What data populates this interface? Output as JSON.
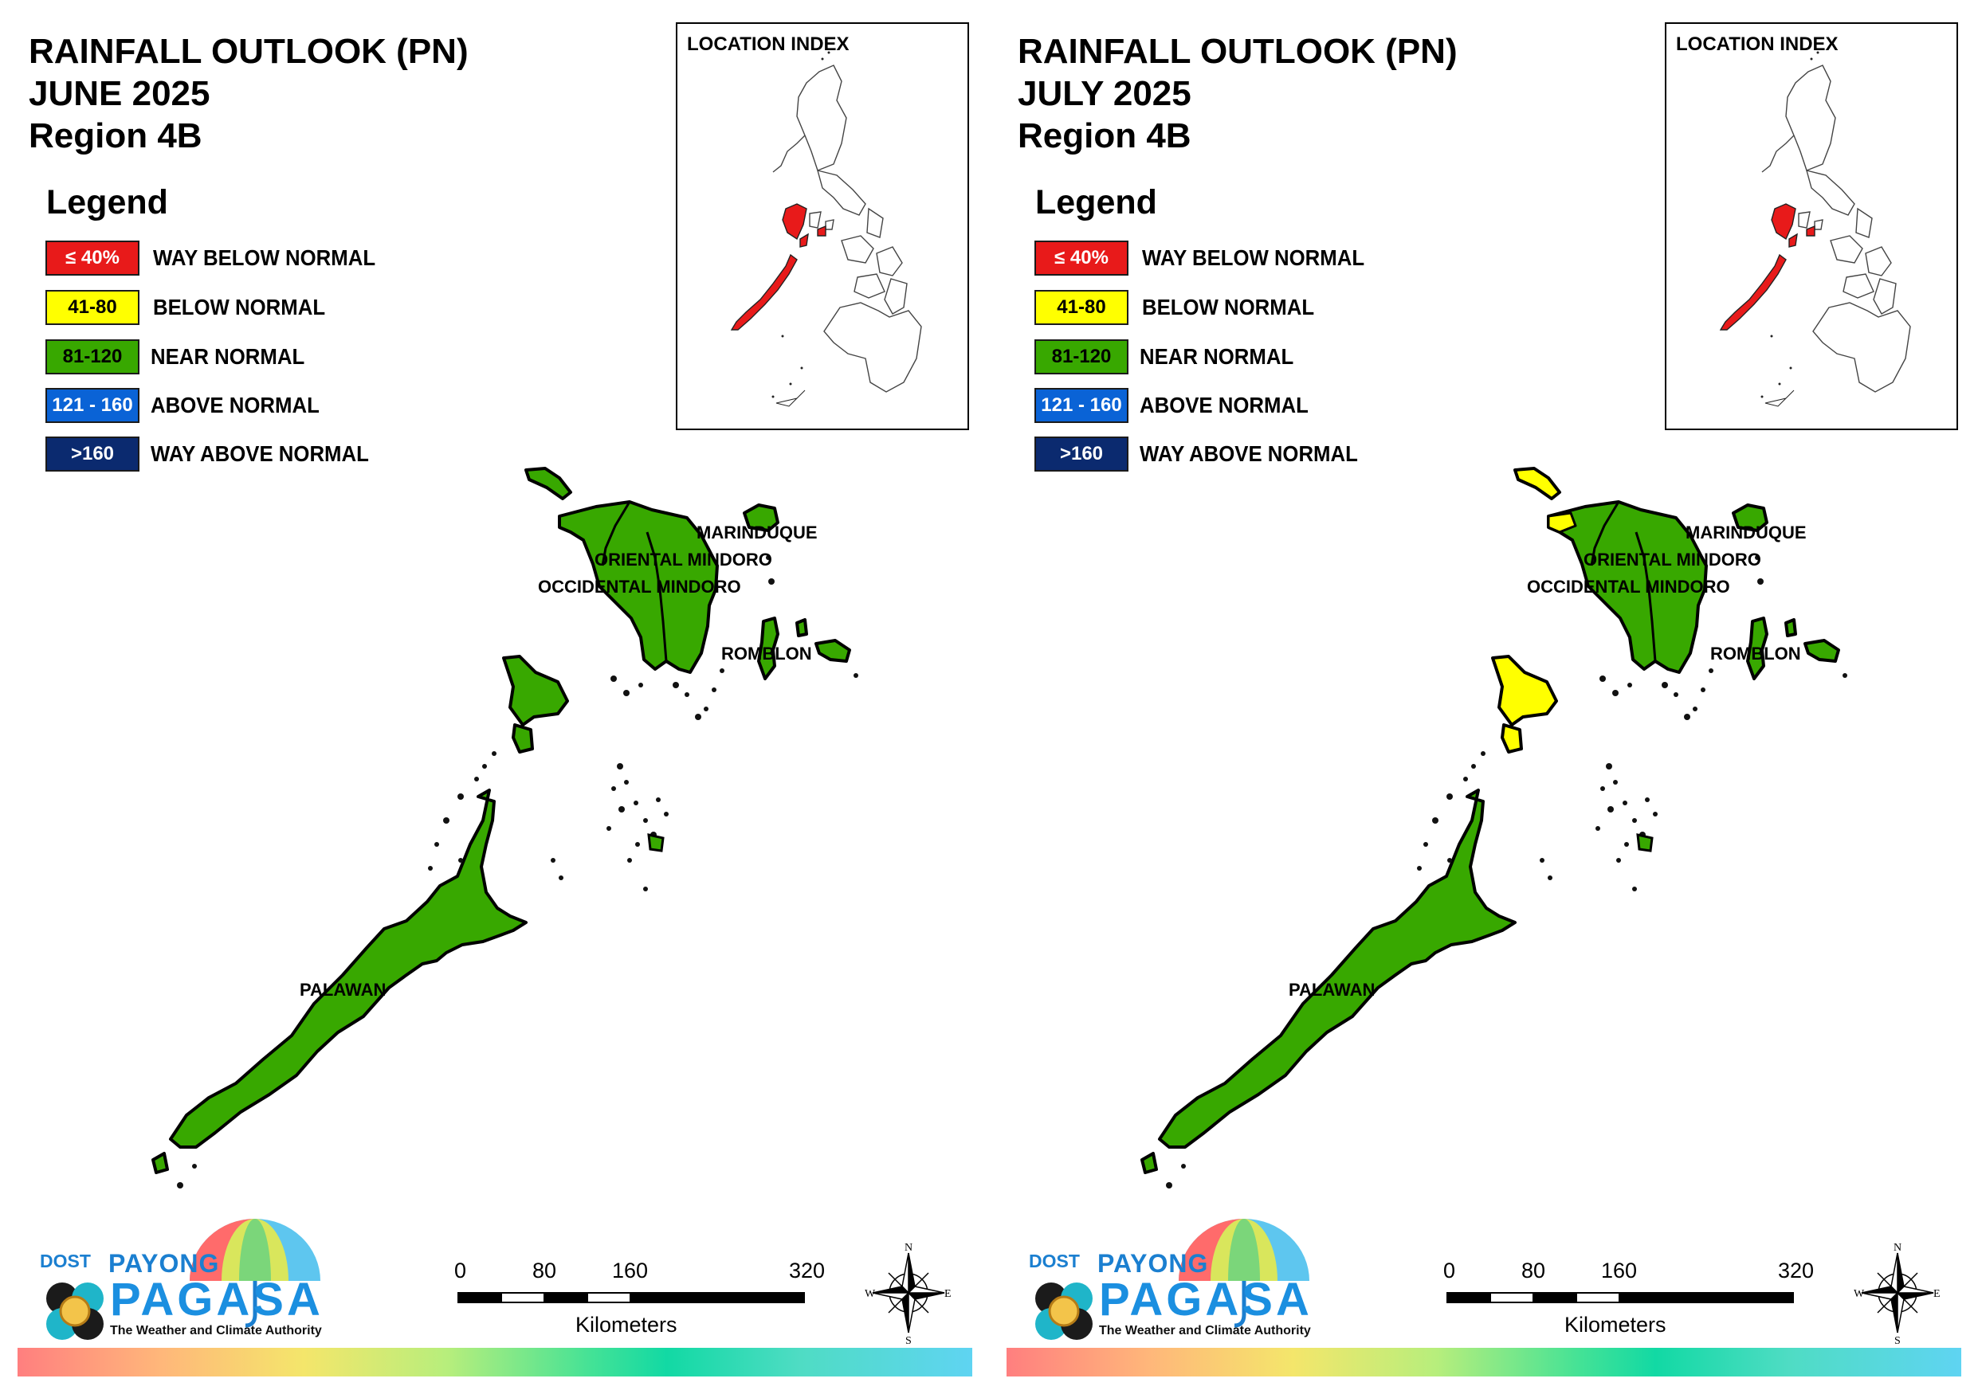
{
  "colors": {
    "way_below": "#e81a1a",
    "below": "#ffff00",
    "near": "#38a800",
    "above": "#0a63d6",
    "way_above": "#0b2a6f",
    "brand_blue": "#1b7fd0"
  },
  "legend": {
    "title": "Legend",
    "items": [
      {
        "code": "≤ 40%",
        "label": "WAY BELOW NORMAL",
        "color": "#e81a1a",
        "text_color": "#ffffff"
      },
      {
        "code": "41-80",
        "label": "BELOW NORMAL",
        "color": "#ffff00",
        "text_color": "#000000"
      },
      {
        "code": "81-120",
        "label": "NEAR NORMAL",
        "color": "#38a800",
        "text_color": "#000000"
      },
      {
        "code": "121 - 160",
        "label": "ABOVE NORMAL",
        "color": "#0a63d6",
        "text_color": "#ffffff"
      },
      {
        "code": ">160",
        "label": "WAY ABOVE NORMAL",
        "color": "#0b2a6f",
        "text_color": "#ffffff"
      }
    ]
  },
  "panels": [
    {
      "title_line1": "RAINFALL OUTLOOK (PN)",
      "title_line2": "JUNE 2025",
      "title_line3": "Region 4B",
      "inset_title": "LOCATION INDEX",
      "province_labels": [
        "MARINDUQUE",
        "ORIENTAL MINDORO",
        "OCCIDENTAL MINDORO",
        "ROMBLON",
        "PALAWAN"
      ],
      "yellow_areas": false
    },
    {
      "title_line1": "RAINFALL OUTLOOK (PN)",
      "title_line2": "JULY 2025",
      "title_line3": "Region 4B",
      "inset_title": "LOCATION INDEX",
      "province_labels": [
        "MARINDUQUE",
        "ORIENTAL MINDORO",
        "OCCIDENTAL MINDORO",
        "ROMBLON",
        "PALAWAN"
      ],
      "yellow_areas": true
    }
  ],
  "scale": {
    "ticks": [
      "0",
      "80",
      "160",
      "320"
    ],
    "unit": "Kilometers"
  },
  "compass": {
    "n": "N",
    "s": "S",
    "e": "E",
    "w": "W"
  },
  "logo": {
    "dost": "DOST",
    "payong": "PAYONG",
    "pagasa": "PAGASA",
    "tagline": "The Weather and Climate Authority"
  }
}
